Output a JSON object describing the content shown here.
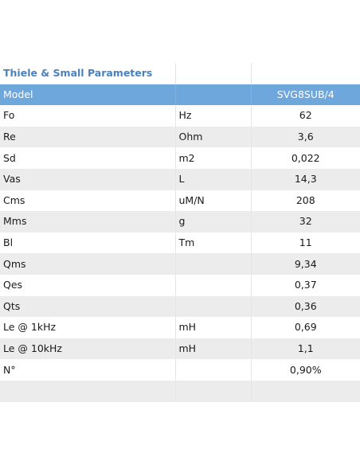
{
  "title": "Thiele & Small Parameters",
  "header": {
    "label": "Model",
    "unit": "",
    "value": "SVG8SUB/4"
  },
  "rows": [
    {
      "name": "Fo",
      "unit": "Hz",
      "value": "62"
    },
    {
      "name": "Re",
      "unit": "Ohm",
      "value": "3,6"
    },
    {
      "name": "Sd",
      "unit": "m2",
      "value": "0,022"
    },
    {
      "name": "Vas",
      "unit": "L",
      "value": "14,3"
    },
    {
      "name": "Cms",
      "unit": "uM/N",
      "value": "208"
    },
    {
      "name": "Mms",
      "unit": "g",
      "value": "32"
    },
    {
      "name": "Bl",
      "unit": "Tm",
      "value": "11"
    },
    {
      "name": "Qms",
      "unit": "",
      "value": "9,34"
    },
    {
      "name": "Qes",
      "unit": "",
      "value": "0,37"
    },
    {
      "name": "Qts",
      "unit": "",
      "value": "0,36"
    },
    {
      "name": "Le @ 1kHz",
      "unit": "mH",
      "value": "0,69"
    },
    {
      "name": "Le @ 10kHz",
      "unit": "mH",
      "value": "1,1"
    },
    {
      "name": "N°",
      "unit": "",
      "value": "0,90%"
    },
    {
      "name": "",
      "unit": "",
      "value": ""
    }
  ]
}
